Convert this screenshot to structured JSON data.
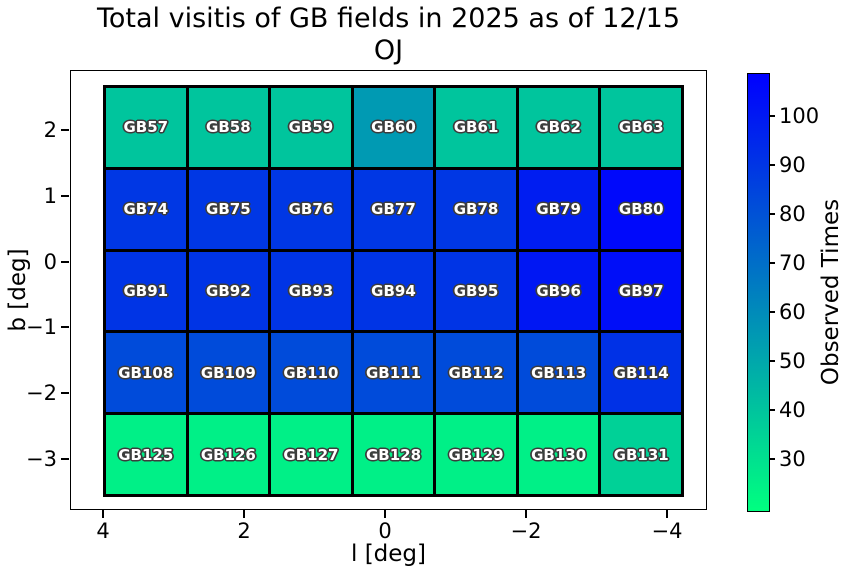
{
  "title": {
    "line1": "Total visitis of GB fields in 2025 as of 12/15",
    "line2": "OJ"
  },
  "axes": {
    "xlabel": "l [deg]",
    "ylabel": "b [deg]",
    "x_tick_labels": [
      "4",
      "2",
      "0",
      "−2",
      "−4"
    ],
    "y_tick_labels": [
      "2",
      "1",
      "0",
      "−1",
      "−2",
      "−3"
    ]
  },
  "colorbar": {
    "label": "Observed Times",
    "tick_labels": [
      "100",
      "90",
      "80",
      "70",
      "60",
      "50",
      "40",
      "30"
    ],
    "color_bottom": "#00ff80",
    "color_top": "#0000ff"
  },
  "chart_data": {
    "type": "heatmap",
    "title": "Total visitis of GB fields in 2025 as of 12/15 OJ",
    "xlabel": "l [deg]",
    "ylabel": "b [deg]",
    "x_axis": {
      "tick_values": [
        4,
        2,
        0,
        -2,
        -4
      ],
      "inverted": true,
      "approx_range": [
        4.5,
        -4.5
      ]
    },
    "y_axis": {
      "tick_values": [
        2,
        1,
        0,
        -1,
        -2,
        -3
      ],
      "approx_range": [
        -3.4,
        2.7
      ]
    },
    "colorbar": {
      "label": "Observed Times",
      "tick_values": [
        100,
        90,
        80,
        70,
        60,
        50,
        40,
        30
      ],
      "approx_vmin": 21,
      "approx_vmax": 109,
      "colormap": "green-to-blue (winter_r style)"
    },
    "grid_shape": {
      "rows": 5,
      "cols": 7
    },
    "cells": [
      {
        "label": "GB57",
        "value_est": 40,
        "color": "#00C59D"
      },
      {
        "label": "GB58",
        "value_est": 40,
        "color": "#00C59D"
      },
      {
        "label": "GB59",
        "value_est": 40,
        "color": "#00C59D"
      },
      {
        "label": "GB60",
        "value_est": 55,
        "color": "#009AB3"
      },
      {
        "label": "GB61",
        "value_est": 40,
        "color": "#00C59D"
      },
      {
        "label": "GB62",
        "value_est": 40,
        "color": "#00C59D"
      },
      {
        "label": "GB63",
        "value_est": 40,
        "color": "#00C59D"
      },
      {
        "label": "GB74",
        "value_est": 89,
        "color": "#0037E4"
      },
      {
        "label": "GB75",
        "value_est": 89,
        "color": "#0037E4"
      },
      {
        "label": "GB76",
        "value_est": 89,
        "color": "#0037E4"
      },
      {
        "label": "GB77",
        "value_est": 89,
        "color": "#0037E4"
      },
      {
        "label": "GB78",
        "value_est": 89,
        "color": "#0037E4"
      },
      {
        "label": "GB79",
        "value_est": 98,
        "color": "#001DF1"
      },
      {
        "label": "GB80",
        "value_est": 105,
        "color": "#0009FB"
      },
      {
        "label": "GB91",
        "value_est": 90,
        "color": "#0034E5"
      },
      {
        "label": "GB92",
        "value_est": 90,
        "color": "#0034E5"
      },
      {
        "label": "GB93",
        "value_est": 90,
        "color": "#0034E5"
      },
      {
        "label": "GB94",
        "value_est": 90,
        "color": "#0034E5"
      },
      {
        "label": "GB95",
        "value_est": 90,
        "color": "#0034E5"
      },
      {
        "label": "GB96",
        "value_est": 100,
        "color": "#0017F3"
      },
      {
        "label": "GB97",
        "value_est": 103,
        "color": "#000EF8"
      },
      {
        "label": "GB108",
        "value_est": 82,
        "color": "#004BDA"
      },
      {
        "label": "GB109",
        "value_est": 82,
        "color": "#004BDA"
      },
      {
        "label": "GB110",
        "value_est": 82,
        "color": "#004BDA"
      },
      {
        "label": "GB111",
        "value_est": 82,
        "color": "#004BDA"
      },
      {
        "label": "GB112",
        "value_est": 82,
        "color": "#004BDA"
      },
      {
        "label": "GB113",
        "value_est": 82,
        "color": "#004BDA"
      },
      {
        "label": "GB114",
        "value_est": 91,
        "color": "#0031E6"
      },
      {
        "label": "GB125",
        "value_est": 25,
        "color": "#00F087"
      },
      {
        "label": "GB126",
        "value_est": 25,
        "color": "#00F087"
      },
      {
        "label": "GB127",
        "value_est": 25,
        "color": "#00F087"
      },
      {
        "label": "GB128",
        "value_est": 25,
        "color": "#00F087"
      },
      {
        "label": "GB129",
        "value_est": 25,
        "color": "#00F087"
      },
      {
        "label": "GB130",
        "value_est": 25,
        "color": "#00F087"
      },
      {
        "label": "GB131",
        "value_est": 36,
        "color": "#00D197"
      }
    ]
  }
}
